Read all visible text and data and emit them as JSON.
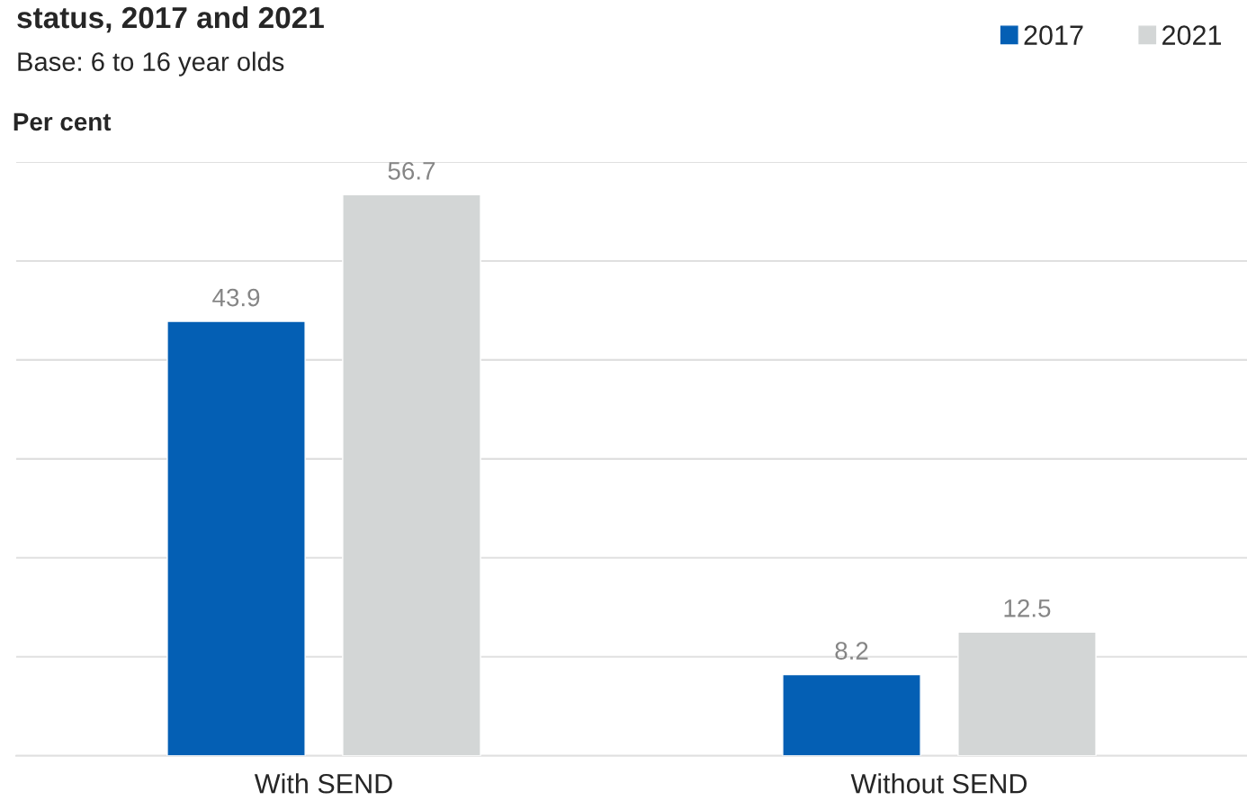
{
  "chart_data": {
    "type": "bar",
    "title": "status, 2017 and 2021",
    "subtitle": "Base: 6 to 16 year olds",
    "ylabel": "Per cent",
    "categories": [
      "With SEND",
      "Without SEND"
    ],
    "series": [
      {
        "name": "2017",
        "color": "#045fb4",
        "values": [
          43.9,
          8.2
        ]
      },
      {
        "name": "2021",
        "color": "#d3d6d6",
        "values": [
          56.7,
          12.5
        ]
      }
    ],
    "ylim": [
      0,
      60
    ],
    "yticks": [
      {
        "value": 0,
        "label": null
      },
      {
        "value": 10,
        "label": null
      },
      {
        "value": 20,
        "label": null
      },
      {
        "value": 30,
        "label": null
      },
      {
        "value": 40,
        "label": null
      },
      {
        "value": 50,
        "label": null
      },
      {
        "value": 60,
        "label": null
      }
    ],
    "tick_labels": "x",
    "grid": "y",
    "legend": "top right",
    "data_labels": true
  }
}
